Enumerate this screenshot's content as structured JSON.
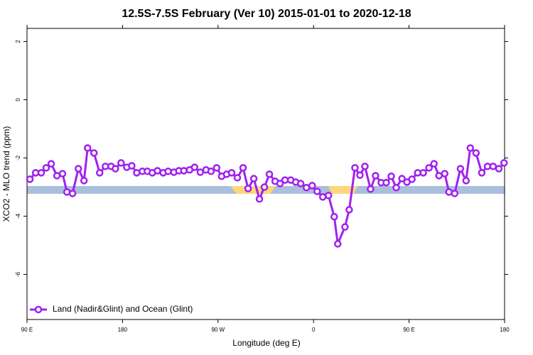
{
  "chart_data": {
    "type": "line",
    "title": "12.5S-7.5S February (Ver 10)   2015-01-01 to 2020-12-18",
    "x_label": "Longitude (deg E)",
    "y_label": "XCO2 - MLO trend (ppm)",
    "xlim": [
      90,
      540
    ],
    "ylim": [
      -7.55,
      2.45
    ],
    "xticks": [
      {
        "value": 90,
        "label": "90 E"
      },
      180,
      {
        "value": 270,
        "label": "90 W"
      },
      {
        "value": 360,
        "label": "0"
      },
      {
        "value": 450,
        "label": "90 E"
      },
      180.0001
    ],
    "yticks": [
      -6,
      -4,
      -2,
      0,
      2
    ],
    "legend": "bottom-left",
    "x": [
      92.7,
      98.1,
      103.4,
      108.1,
      112.8,
      118.2,
      123.5,
      127.6,
      132.9,
      138.4,
      143.7,
      147.1,
      153.1,
      158.5,
      163.9,
      169.2,
      173.3,
      178.6,
      184.0,
      188.7,
      193.4,
      198.7,
      203.4,
      208.1,
      212.9,
      218.3,
      223.0,
      228.4,
      233.1,
      237.8,
      243.2,
      247.9,
      253.3,
      258.7,
      263.4,
      268.7,
      273.4,
      278.1,
      282.8,
      288.2,
      293.6,
      298.3,
      303.7,
      309.0,
      313.7,
      318.4,
      323.8,
      328.4,
      333.1,
      338.5,
      343.2,
      347.9,
      353.3,
      358.7,
      363.4,
      368.7,
      374.1,
      379.5,
      382.8,
      389.6,
      393.6,
      399.0,
      403.7,
      408.4,
      413.7,
      418.4,
      423.8,
      428.5,
      433.2,
      437.9,
      443.3,
      448.0,
      452.7,
      458.1,
      463.4,
      468.8,
      473.5,
      478.2,
      483.6,
      487.6,
      493.0,
      498.4,
      503.7,
      507.7,
      513.1,
      518.5,
      523.9,
      529.2,
      534.6,
      539.5
    ],
    "series": [
      {
        "name": "Land (Nadir&Glint) and Ocean (Glint)",
        "color": "#a020f0",
        "values": [
          -2.73,
          -2.51,
          -2.51,
          -2.34,
          -2.2,
          -2.61,
          -2.54,
          -3.17,
          -3.22,
          -2.37,
          -2.78,
          -1.66,
          -1.83,
          -2.51,
          -2.29,
          -2.29,
          -2.37,
          -2.17,
          -2.32,
          -2.27,
          -2.51,
          -2.46,
          -2.46,
          -2.51,
          -2.44,
          -2.51,
          -2.46,
          -2.49,
          -2.44,
          -2.44,
          -2.41,
          -2.32,
          -2.49,
          -2.41,
          -2.46,
          -2.34,
          -2.63,
          -2.56,
          -2.51,
          -2.68,
          -2.34,
          -3.05,
          -2.71,
          -3.41,
          -3.0,
          -2.56,
          -2.8,
          -2.88,
          -2.76,
          -2.76,
          -2.83,
          -2.88,
          -3.02,
          -2.95,
          -3.15,
          -3.34,
          -3.29,
          -4.02,
          -4.95,
          -4.37,
          -3.78,
          -2.34,
          -2.59,
          -2.29,
          -3.07,
          -2.61,
          -2.85,
          -2.85,
          -2.63,
          -3.02,
          -2.71,
          -2.83,
          -2.73,
          -2.51,
          -2.51,
          -2.34,
          -2.2,
          -2.61,
          -2.54,
          -3.17,
          -3.22,
          -2.37,
          -2.78,
          -1.66,
          -1.83,
          -2.51,
          -2.29,
          -2.29,
          -2.37,
          -2.17
        ]
      }
    ]
  }
}
